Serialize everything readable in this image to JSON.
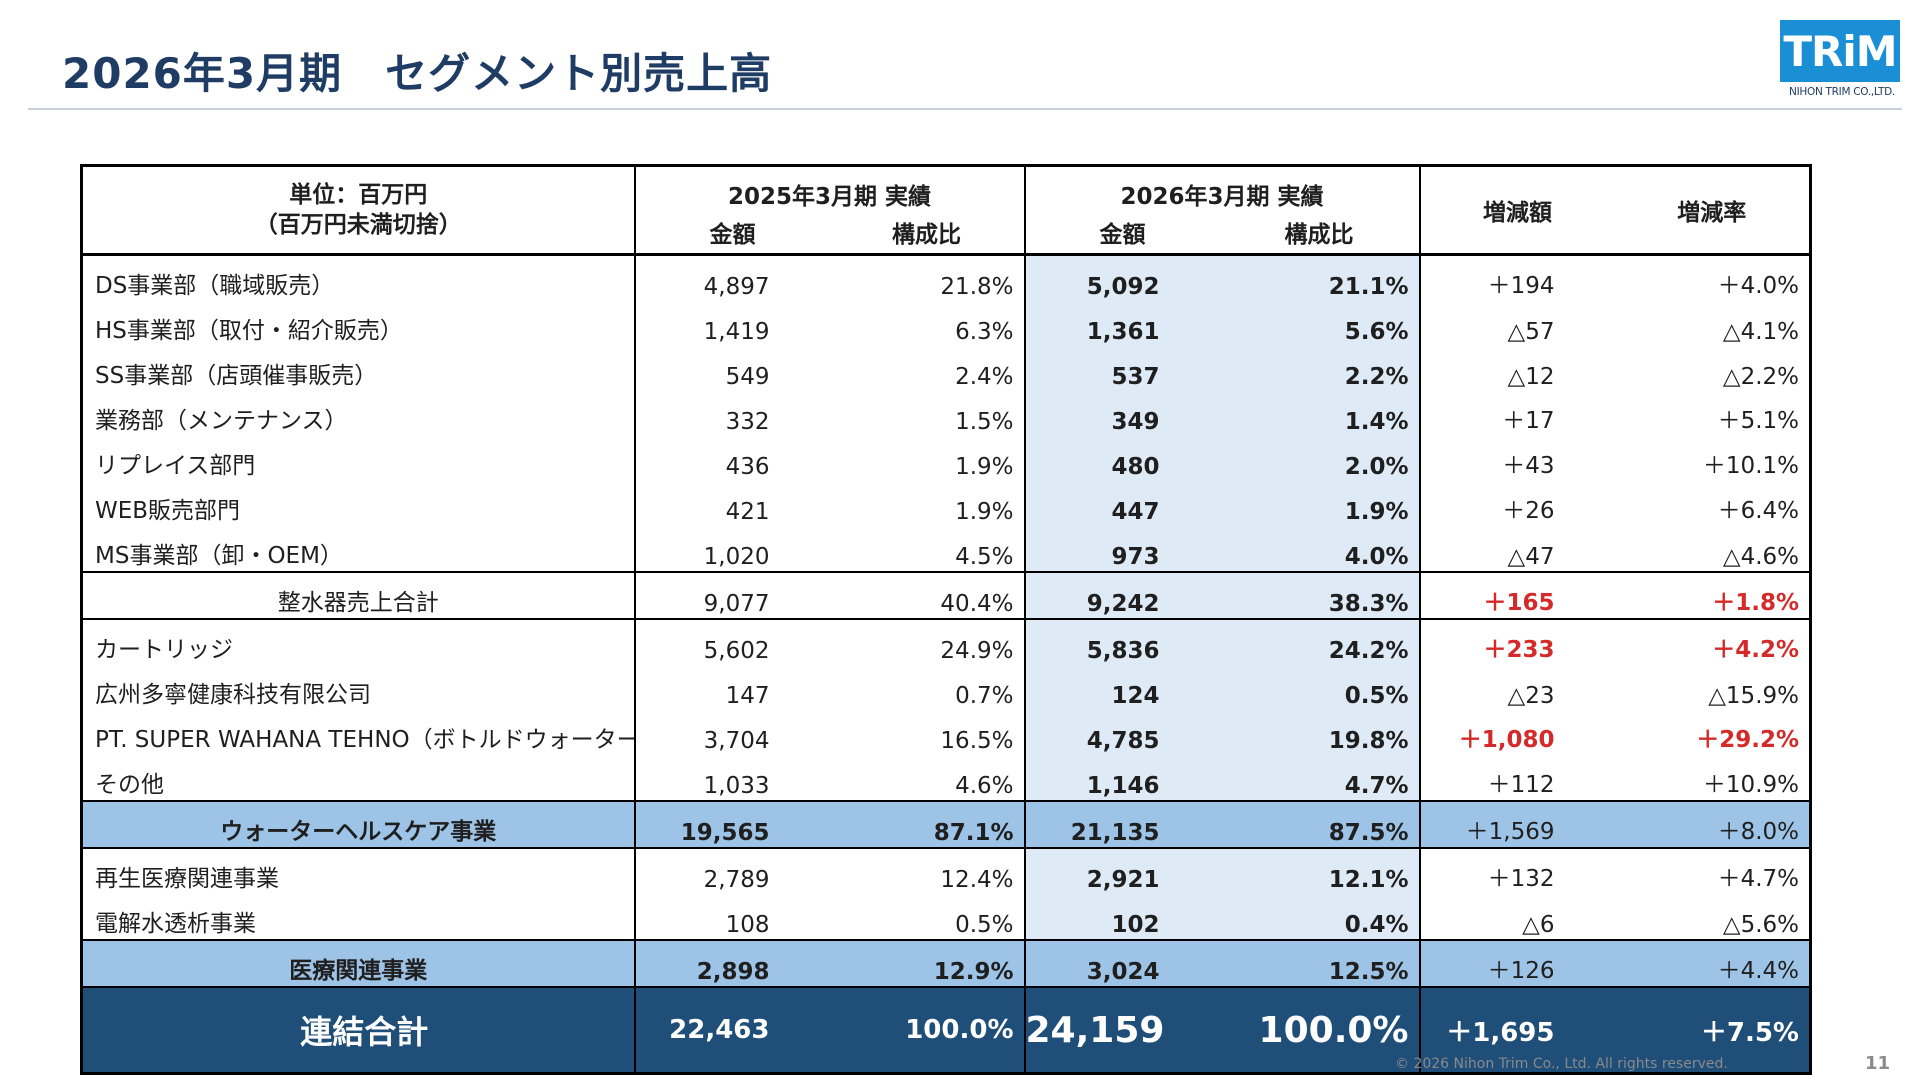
{
  "title": "2026年3月期　セグメント別売上高",
  "logo": {
    "mark": "TRiM",
    "sub": "NIHON TRIM CO.,LTD."
  },
  "header": {
    "unit_line1": "単位：百万円",
    "unit_line2": "（百万円未満切捨）",
    "prev_period": "2025年3月期 実績",
    "curr_period": "2026年3月期 実績",
    "amount": "金額",
    "ratio": "構成比",
    "diff_amount": "増減額",
    "diff_rate": "増減率"
  },
  "rows": [
    {
      "label": "DS事業部（職域販売）",
      "prev_amt": "4,897",
      "prev_ratio": "21.8%",
      "curr_amt": "5,092",
      "curr_ratio": "21.1%",
      "diff": "＋194",
      "rate": "＋4.0%"
    },
    {
      "label": "HS事業部（取付・紹介販売）",
      "prev_amt": "1,419",
      "prev_ratio": "6.3%",
      "curr_amt": "1,361",
      "curr_ratio": "5.6%",
      "diff": "△57",
      "rate": "△4.1%"
    },
    {
      "label": "SS事業部（店頭催事販売）",
      "prev_amt": "549",
      "prev_ratio": "2.4%",
      "curr_amt": "537",
      "curr_ratio": "2.2%",
      "diff": "△12",
      "rate": "△2.2%"
    },
    {
      "label": "業務部（メンテナンス）",
      "prev_amt": "332",
      "prev_ratio": "1.5%",
      "curr_amt": "349",
      "curr_ratio": "1.4%",
      "diff": "＋17",
      "rate": "＋5.1%"
    },
    {
      "label": "リプレイス部門",
      "prev_amt": "436",
      "prev_ratio": "1.9%",
      "curr_amt": "480",
      "curr_ratio": "2.0%",
      "diff": "＋43",
      "rate": "＋10.1%"
    },
    {
      "label": "WEB販売部門",
      "prev_amt": "421",
      "prev_ratio": "1.9%",
      "curr_amt": "447",
      "curr_ratio": "1.9%",
      "diff": "＋26",
      "rate": "＋6.4%"
    },
    {
      "label": "MS事業部（卸・OEM）",
      "prev_amt": "1,020",
      "prev_ratio": "4.5%",
      "curr_amt": "973",
      "curr_ratio": "4.0%",
      "diff": "△47",
      "rate": "△4.6%"
    },
    {
      "label": "整水器売上合計",
      "prev_amt": "9,077",
      "prev_ratio": "40.4%",
      "curr_amt": "9,242",
      "curr_ratio": "38.3%",
      "diff": "＋165",
      "rate": "＋1.8%"
    },
    {
      "label": "カートリッジ",
      "prev_amt": "5,602",
      "prev_ratio": "24.9%",
      "curr_amt": "5,836",
      "curr_ratio": "24.2%",
      "diff": "＋233",
      "rate": "＋4.2%"
    },
    {
      "label": "広州多寧健康科技有限公司",
      "prev_amt": "147",
      "prev_ratio": "0.7%",
      "curr_amt": "124",
      "curr_ratio": "0.5%",
      "diff": "△23",
      "rate": "△15.9%"
    },
    {
      "label": "PT. SUPER WAHANA TEHNO（ボトルドウォーター）",
      "prev_amt": "3,704",
      "prev_ratio": "16.5%",
      "curr_amt": "4,785",
      "curr_ratio": "19.8%",
      "diff": "＋1,080",
      "rate": "＋29.2%"
    },
    {
      "label": "その他",
      "prev_amt": "1,033",
      "prev_ratio": "4.6%",
      "curr_amt": "1,146",
      "curr_ratio": "4.7%",
      "diff": "＋112",
      "rate": "＋10.9%"
    },
    {
      "label": "ウォーターヘルスケア事業",
      "prev_amt": "19,565",
      "prev_ratio": "87.1%",
      "curr_amt": "21,135",
      "curr_ratio": "87.5%",
      "diff": "＋1,569",
      "rate": "＋8.0%"
    },
    {
      "label": "再生医療関連事業",
      "prev_amt": "2,789",
      "prev_ratio": "12.4%",
      "curr_amt": "2,921",
      "curr_ratio": "12.1%",
      "diff": "＋132",
      "rate": "＋4.7%"
    },
    {
      "label": "電解水透析事業",
      "prev_amt": "108",
      "prev_ratio": "0.5%",
      "curr_amt": "102",
      "curr_ratio": "0.4%",
      "diff": "△6",
      "rate": "△5.6%"
    },
    {
      "label": "医療関連事業",
      "prev_amt": "2,898",
      "prev_ratio": "12.9%",
      "curr_amt": "3,024",
      "curr_ratio": "12.5%",
      "diff": "＋126",
      "rate": "＋4.4%"
    },
    {
      "label": "連結合計",
      "prev_amt": "22,463",
      "prev_ratio": "100.0%",
      "curr_amt": "24,159",
      "curr_ratio": "100.0%",
      "diff": "＋1,695",
      "rate": "＋7.5%"
    }
  ],
  "colors": {
    "title": "#1f3d64",
    "highlight_col": "#deebf7",
    "subtotal_row": "#9dc3e6",
    "total_row": "#1f4e79",
    "positive_emphasis": "#d42a2a",
    "logo": "#1a8fd6"
  },
  "footer": {
    "copyright": "© 2026 Nihon Trim Co., Ltd. All rights reserved.",
    "page": "11"
  }
}
